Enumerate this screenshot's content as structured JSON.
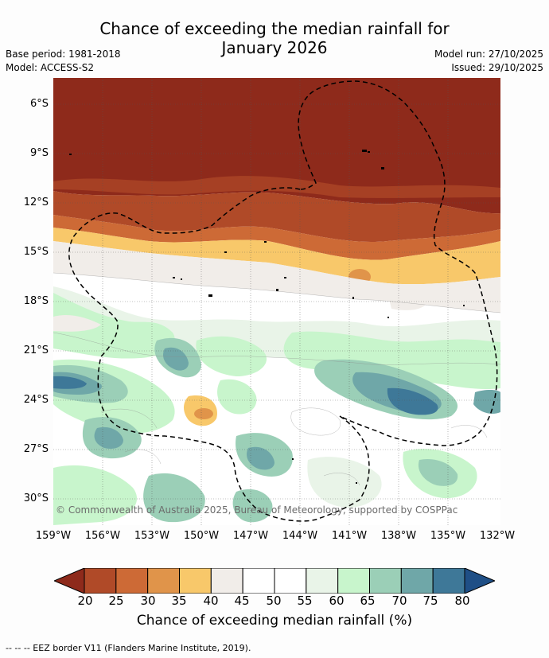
{
  "title_line1": "Chance of exceeding the median rainfall for",
  "title_line2": "January 2026",
  "base_period": "Base period: 1981-2018",
  "model": "Model: ACCESS-S2",
  "model_run": "Model run: 27/10/2025",
  "issued": "Issued: 29/10/2025",
  "lat_labels": [
    "6°S",
    "9°S",
    "12°S",
    "15°S",
    "18°S",
    "21°S",
    "24°S",
    "27°S",
    "30°S"
  ],
  "lon_labels": [
    "159°W",
    "156°W",
    "153°W",
    "150°W",
    "147°W",
    "144°W",
    "141°W",
    "138°W",
    "135°W",
    "132°W"
  ],
  "copyright": "© Commonwealth of Australia 2025, Bureau of Meteorology, supported by COSPPac",
  "colorbar": {
    "title": "Chance of exceeding median rainfall (%)",
    "ticks": [
      "20",
      "25",
      "30",
      "35",
      "40",
      "45",
      "50",
      "55",
      "60",
      "65",
      "70",
      "75",
      "80"
    ],
    "colors": [
      "#8e2a1b",
      "#b04a28",
      "#cd6a36",
      "#e0944a",
      "#f8c86a",
      "#f1ede9",
      "#ffffff",
      "#ffffff",
      "#e9f4e8",
      "#c8f5cc",
      "#9bcfb7",
      "#6fa7a8",
      "#3e7898",
      "#1f4f86"
    ]
  },
  "footnote": "--  --  -- EEZ border V11 (Flanders Marine Institute, 2019)."
}
